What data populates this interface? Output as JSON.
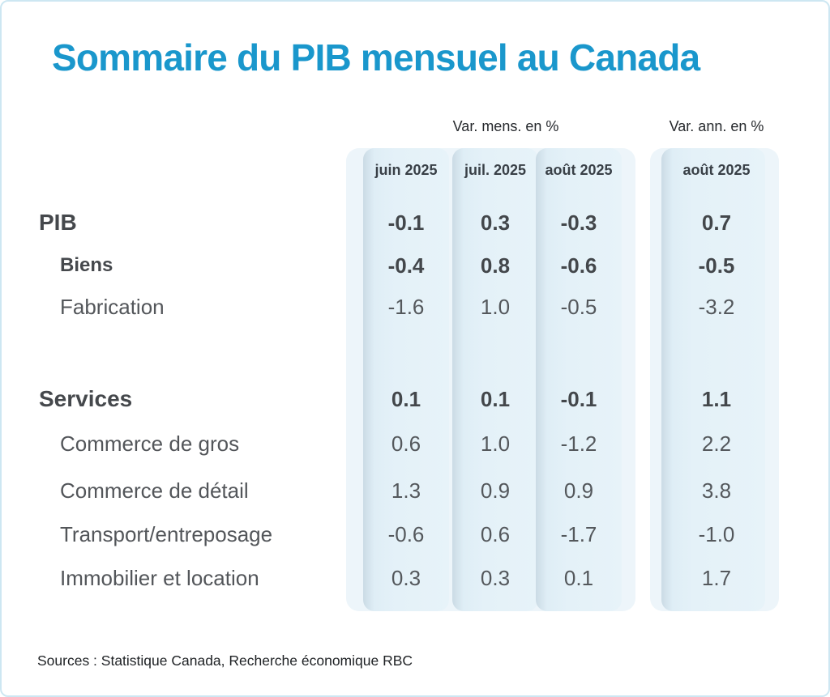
{
  "title": "Sommaire du PIB mensuel au Canada",
  "source_note": "Sources : Statistique Canada, Recherche économique RBC",
  "colors": {
    "title_blue": "#1a97cc",
    "panel_background": "#edf5fa",
    "column_strip_shadow": "#cbdbe5",
    "column_strip_fill": "#e4f1f8",
    "page_border": "#cde7f2",
    "text_dark": "#45484c",
    "text_gray": "#54585c"
  },
  "table": {
    "group1_label": "Var. mens. en %",
    "group2_label": "Var. ann. en %",
    "columns": {
      "c1": "juin 2025",
      "c2": "juil. 2025",
      "c3": "août 2025",
      "c4": "août 2025"
    },
    "rows": [
      {
        "label": "PIB",
        "v1": "-0.1",
        "v2": "0.3",
        "v3": "-0.3",
        "v4": "0.7"
      },
      {
        "label": "Biens",
        "v1": "-0.4",
        "v2": "0.8",
        "v3": "-0.6",
        "v4": "-0.5"
      },
      {
        "label": "Fabrication",
        "v1": "-1.6",
        "v2": "1.0",
        "v3": "-0.5",
        "v4": "-3.2"
      },
      {
        "label": "Services",
        "v1": "0.1",
        "v2": "0.1",
        "v3": "-0.1",
        "v4": "1.1"
      },
      {
        "label": "Commerce de gros",
        "v1": "0.6",
        "v2": "1.0",
        "v3": "-1.2",
        "v4": "2.2"
      },
      {
        "label": "Commerce de détail",
        "v1": "1.3",
        "v2": "0.9",
        "v3": "0.9",
        "v4": "3.8"
      },
      {
        "label": "Transport/entreposage",
        "v1": "-0.6",
        "v2": "0.6",
        "v3": "-1.7",
        "v4": "-1.0"
      },
      {
        "label": "Immobilier et location",
        "v1": "0.3",
        "v2": "0.3",
        "v3": "0.1",
        "v4": "1.7"
      }
    ]
  },
  "chart_data": {
    "type": "table",
    "title": "Sommaire du PIB mensuel au Canada",
    "column_groups": [
      {
        "label": "Var. mens. en %",
        "columns": [
          "juin 2025",
          "juil. 2025",
          "août 2025"
        ]
      },
      {
        "label": "Var. ann. en %",
        "columns": [
          "août 2025"
        ]
      }
    ],
    "rows": [
      {
        "label": "PIB",
        "indent": 0,
        "bold": true,
        "monthly": [
          -0.1,
          0.3,
          -0.3
        ],
        "annual": 0.7
      },
      {
        "label": "Biens",
        "indent": 1,
        "bold": true,
        "monthly": [
          -0.4,
          0.8,
          -0.6
        ],
        "annual": -0.5
      },
      {
        "label": "Fabrication",
        "indent": 1,
        "bold": false,
        "monthly": [
          -1.6,
          1.0,
          -0.5
        ],
        "annual": -3.2
      },
      {
        "label": "Services",
        "indent": 0,
        "bold": true,
        "monthly": [
          0.1,
          0.1,
          -0.1
        ],
        "annual": 1.1
      },
      {
        "label": "Commerce de gros",
        "indent": 1,
        "bold": false,
        "monthly": [
          0.6,
          1.0,
          -1.2
        ],
        "annual": 2.2
      },
      {
        "label": "Commerce de détail",
        "indent": 1,
        "bold": false,
        "monthly": [
          1.3,
          0.9,
          0.9
        ],
        "annual": 3.8
      },
      {
        "label": "Transport/entreposage",
        "indent": 1,
        "bold": false,
        "monthly": [
          -0.6,
          0.6,
          -1.7
        ],
        "annual": -1.0
      },
      {
        "label": "Immobilier et location",
        "indent": 1,
        "bold": false,
        "monthly": [
          0.3,
          0.3,
          0.1
        ],
        "annual": 1.7
      }
    ],
    "units": "%",
    "source": "Sources : Statistique Canada, Recherche économique RBC"
  }
}
